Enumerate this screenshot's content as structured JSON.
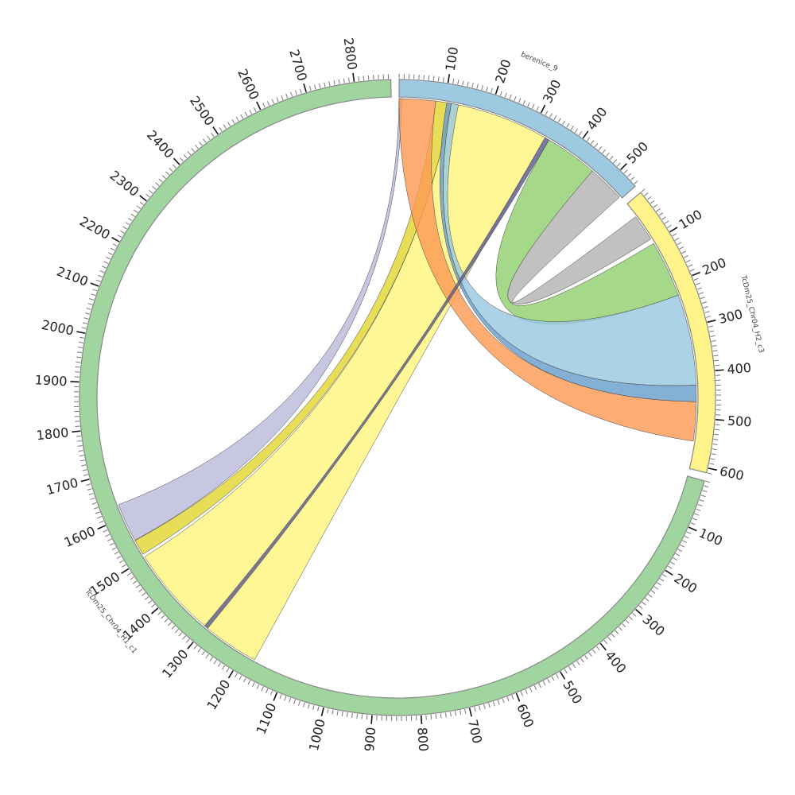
{
  "title": "",
  "scale_units_per_tick": 10,
  "segments": [
    {
      "name": "berenice_9",
      "length": 545,
      "color": "#9ecae1",
      "major_ticks": [
        "100",
        "200",
        "300",
        "400",
        "500"
      ]
    },
    {
      "name": "TcDm25_Chr04_H2_c3",
      "length": 610,
      "color": "#fff38a",
      "major_ticks": [
        "100",
        "200",
        "300",
        "400",
        "500",
        "600"
      ]
    },
    {
      "name": "TcDm25_Chr04_H1_c1",
      "length": 2875,
      "color": "#a1d59f",
      "major_ticks": [
        "100",
        "200",
        "300",
        "400",
        "500",
        "600",
        "700",
        "800",
        "900",
        "1000",
        "1100",
        "1200",
        "1300",
        "1400",
        "1500",
        "1600",
        "1700",
        "1800",
        "1900",
        "2000",
        "2100",
        "2200",
        "2300",
        "2400",
        "2500",
        "2600",
        "2700",
        "2800"
      ]
    }
  ],
  "links": [
    {
      "from": [
        "berenice_9",
        0,
        6
      ],
      "to": [
        "TcDm25_Chr04_H1_c1",
        1545,
        1630
      ],
      "color": "#bcbbdc"
    },
    {
      "from": [
        "berenice_9",
        114,
        332
      ],
      "to": [
        "TcDm25_Chr04_H1_c1",
        1172,
        1503
      ],
      "color": "#fff47e"
    },
    {
      "from": [
        "berenice_9",
        80,
        114
      ],
      "to": [
        "TcDm25_Chr04_H1_c1",
        1510,
        1544
      ],
      "color": "#e3d632"
    },
    {
      "from": [
        "berenice_9",
        342,
        458
      ],
      "to": [
        "TcDm25_Chr04_H2_c3",
        103,
        228
      ],
      "color": "#93d070"
    },
    {
      "from": [
        "berenice_9",
        458,
        540
      ],
      "to": [
        "TcDm25_Chr04_H2_c3",
        33,
        92
      ],
      "color": "#b3b3b3"
    },
    {
      "from": [
        "berenice_9",
        114,
        130
      ],
      "to": [
        "TcDm25_Chr04_H2_c3",
        228,
        428
      ],
      "color": "#9ac8e0"
    },
    {
      "from": [
        "berenice_9",
        104,
        114
      ],
      "to": [
        "TcDm25_Chr04_H2_c3",
        428,
        464
      ],
      "color": "#6a9fcc"
    },
    {
      "from": [
        "berenice_9",
        0,
        80
      ],
      "to": [
        "TcDm25_Chr04_H2_c3",
        464,
        550
      ],
      "color": "#fd9a55"
    },
    {
      "from": [
        "berenice_9",
        332,
        342
      ],
      "to": [
        "TcDm25_Chr04_H1_c1",
        1295,
        1304
      ],
      "color": "#5b5b8f"
    }
  ]
}
